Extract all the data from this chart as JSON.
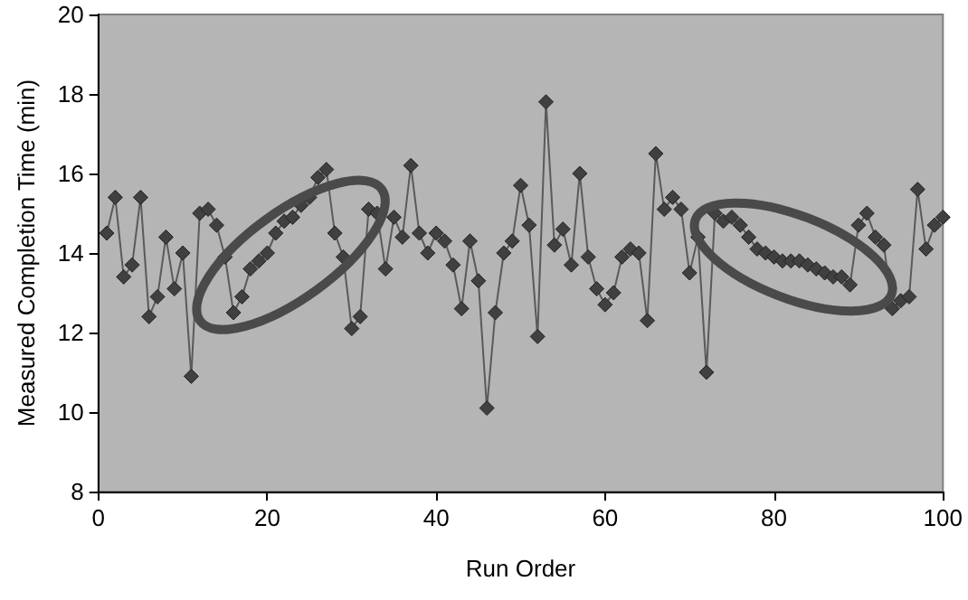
{
  "chart_data": {
    "type": "line",
    "xlabel": "Run Order",
    "ylabel": "Measured Completion Time (min)",
    "x": [
      1,
      2,
      3,
      4,
      5,
      6,
      7,
      8,
      9,
      10,
      11,
      12,
      13,
      14,
      15,
      16,
      17,
      18,
      19,
      20,
      21,
      22,
      23,
      24,
      25,
      26,
      27,
      28,
      29,
      30,
      31,
      32,
      33,
      34,
      35,
      36,
      37,
      38,
      39,
      40,
      41,
      42,
      43,
      44,
      45,
      46,
      47,
      48,
      49,
      50,
      51,
      52,
      53,
      54,
      55,
      56,
      57,
      58,
      59,
      60,
      61,
      62,
      63,
      64,
      65,
      66,
      67,
      68,
      69,
      70,
      71,
      72,
      73,
      74,
      75,
      76,
      77,
      78,
      79,
      80,
      81,
      82,
      83,
      84,
      85,
      86,
      87,
      88,
      89,
      90,
      91,
      92,
      93,
      94,
      95,
      96,
      97,
      98,
      99,
      100
    ],
    "series": [
      {
        "color": "#404040",
        "values": [
          14.5,
          15.4,
          13.4,
          13.7,
          15.4,
          12.4,
          12.9,
          14.4,
          13.1,
          14.0,
          10.9,
          15.0,
          15.1,
          14.7,
          13.9,
          12.5,
          12.9,
          13.6,
          13.8,
          14.0,
          14.5,
          14.8,
          14.9,
          15.2,
          15.4,
          15.9,
          16.1,
          14.5,
          13.9,
          12.1,
          12.4,
          15.1,
          15.0,
          13.6,
          14.9,
          14.4,
          16.2,
          14.5,
          14.0,
          14.5,
          14.3,
          13.7,
          12.6,
          14.3,
          13.3,
          10.1,
          12.5,
          14.0,
          14.3,
          15.7,
          14.7,
          11.9,
          17.8,
          14.2,
          14.6,
          13.7,
          16.0,
          13.9,
          13.1,
          12.7,
          13.0,
          13.9,
          14.1,
          14.0,
          12.3,
          16.5,
          15.1,
          15.4,
          15.1,
          13.5,
          14.4,
          11.0,
          15.0,
          14.8,
          14.9,
          14.7,
          14.4,
          14.1,
          14.0,
          13.9,
          13.8,
          13.8,
          13.8,
          13.7,
          13.6,
          13.5,
          13.4,
          13.4,
          13.2,
          14.7,
          15.0,
          14.4,
          14.2,
          12.6,
          12.8,
          12.9,
          15.6,
          14.1,
          14.7,
          14.9
        ]
      }
    ],
    "xlim": [
      0,
      100
    ],
    "xticks": [
      0,
      20,
      40,
      60,
      80,
      100
    ],
    "ylim": [
      8,
      20
    ],
    "yticks": [
      8,
      10,
      12,
      14,
      16,
      18,
      20
    ],
    "marker": "diamond",
    "line_style": "solid"
  }
}
